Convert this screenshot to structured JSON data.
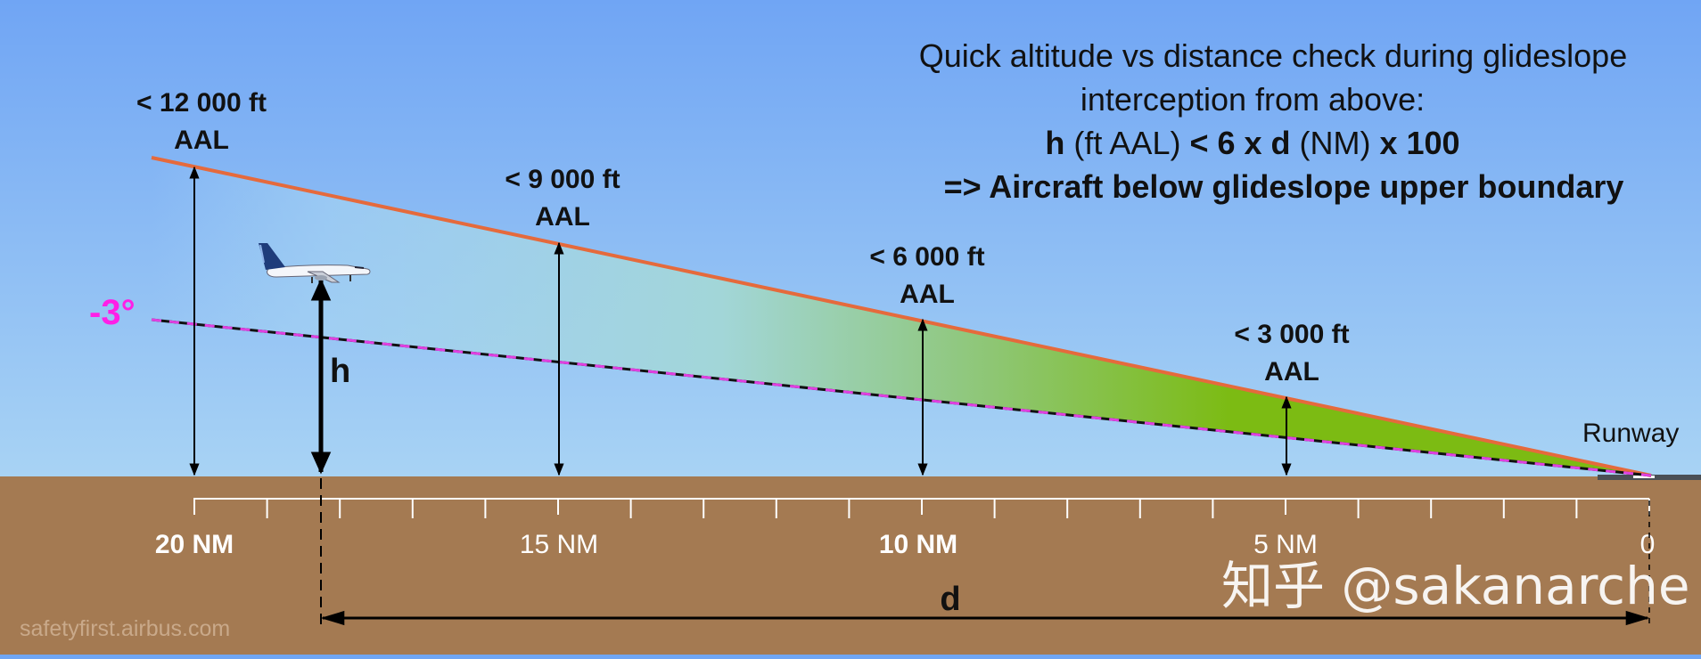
{
  "title": {
    "line1": "Quick altitude vs distance check during glideslope",
    "line2": "interception from above:",
    "line3_h": "h",
    "line3_unit": " (ft AAL) ",
    "line3_op": "< 6 x d",
    "line3_unit2": " (NM) ",
    "line3_tail": "x 100",
    "line4": "=> Aircraft below glideslope upper boundary"
  },
  "altitude_labels": [
    {
      "value": "< 12 000 ft",
      "ref": "AAL"
    },
    {
      "value": "< 9 000 ft",
      "ref": "AAL"
    },
    {
      "value": "< 6 000 ft",
      "ref": "AAL"
    },
    {
      "value": "< 3 000 ft",
      "ref": "AAL"
    }
  ],
  "glideslope_angle": "-3°",
  "h_label": "h",
  "d_label": "d",
  "runway_label": "Runway",
  "distance_ticks": [
    {
      "label": "20 NM",
      "bold": true
    },
    {
      "label": "15 NM",
      "bold": false
    },
    {
      "label": "10 NM",
      "bold": true
    },
    {
      "label": "5 NM",
      "bold": false
    },
    {
      "label": "0",
      "bold": false
    }
  ],
  "source": "safetyfirst.airbus.com",
  "watermark": "知乎 @sakanarche",
  "colors": {
    "sky_top": "#6fa6f4",
    "sky_bottom": "#a4d0f4",
    "ground": "#a47a52",
    "upper_boundary": "#e56a3c",
    "glideslope": "#e040e0",
    "green": "#7cbb13",
    "angle_label": "#ff1fe6"
  },
  "icons": [
    "aircraft-icon"
  ]
}
